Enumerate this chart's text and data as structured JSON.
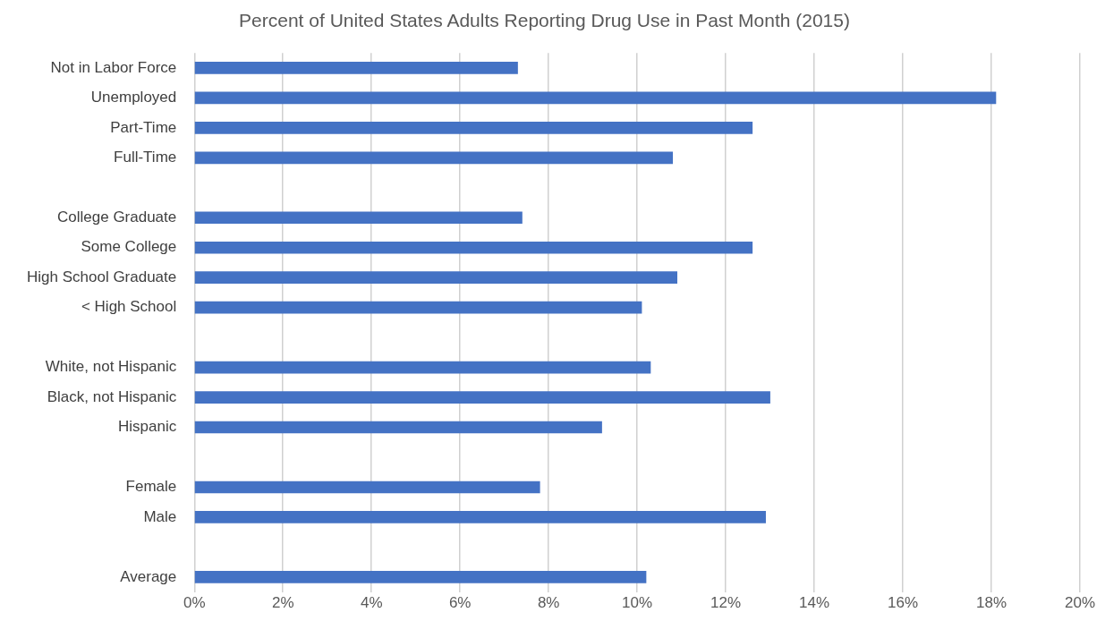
{
  "chart_data": {
    "type": "bar",
    "orientation": "horizontal",
    "title": "Percent of United States Adults Reporting Drug Use in Past Month (2015)",
    "categories": [
      "Not in Labor Force",
      "Unemployed",
      "Part-Time",
      "Full-Time",
      null,
      "College Graduate",
      "Some College",
      "High School Graduate",
      "< High School",
      null,
      "White, not Hispanic",
      "Black, not Hispanic",
      "Hispanic",
      null,
      "Female",
      "Male",
      null,
      "Average"
    ],
    "values": [
      7.3,
      18.1,
      12.6,
      10.8,
      null,
      7.4,
      12.6,
      10.9,
      10.1,
      null,
      10.3,
      13.0,
      9.2,
      null,
      7.8,
      12.9,
      null,
      10.2
    ],
    "color": "#4472c4",
    "xlim": [
      0,
      20
    ],
    "xticks": [
      {
        "value": 0,
        "label": "0%"
      },
      {
        "value": 2,
        "label": "2%"
      },
      {
        "value": 4,
        "label": "4%"
      },
      {
        "value": 6,
        "label": "6%"
      },
      {
        "value": 8,
        "label": "8%"
      },
      {
        "value": 10,
        "label": "10%"
      },
      {
        "value": 12,
        "label": "12%"
      },
      {
        "value": 14,
        "label": "14%"
      },
      {
        "value": 16,
        "label": "16%"
      },
      {
        "value": 18,
        "label": "18%"
      },
      {
        "value": 20,
        "label": "20%"
      }
    ],
    "grid": "x",
    "legend": false
  }
}
